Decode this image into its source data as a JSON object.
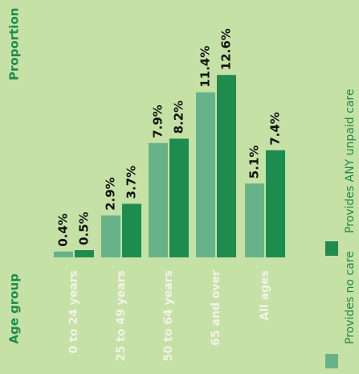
{
  "chart_data": {
    "type": "bar",
    "x_label": "Age group",
    "y_label": "Proportion",
    "categories": [
      "0 to 24 years",
      "25 to 49 years",
      "50 to 64 years",
      "65 and over",
      "All ages"
    ],
    "series": [
      {
        "name": "Provides no care",
        "color": "#66b38a",
        "values": [
          0.4,
          2.9,
          7.9,
          11.4,
          5.1
        ],
        "value_labels": [
          "0.4%",
          "2.9%",
          "7.9%",
          "11.4%",
          "5.1%"
        ]
      },
      {
        "name": "Provides ANY unpaid care",
        "color": "#1e8c4e",
        "values": [
          0.5,
          3.7,
          8.2,
          12.6,
          7.4
        ],
        "value_labels": [
          "0.5%",
          "3.7%",
          "8.2%",
          "12.6%",
          "7.4%"
        ]
      }
    ]
  }
}
